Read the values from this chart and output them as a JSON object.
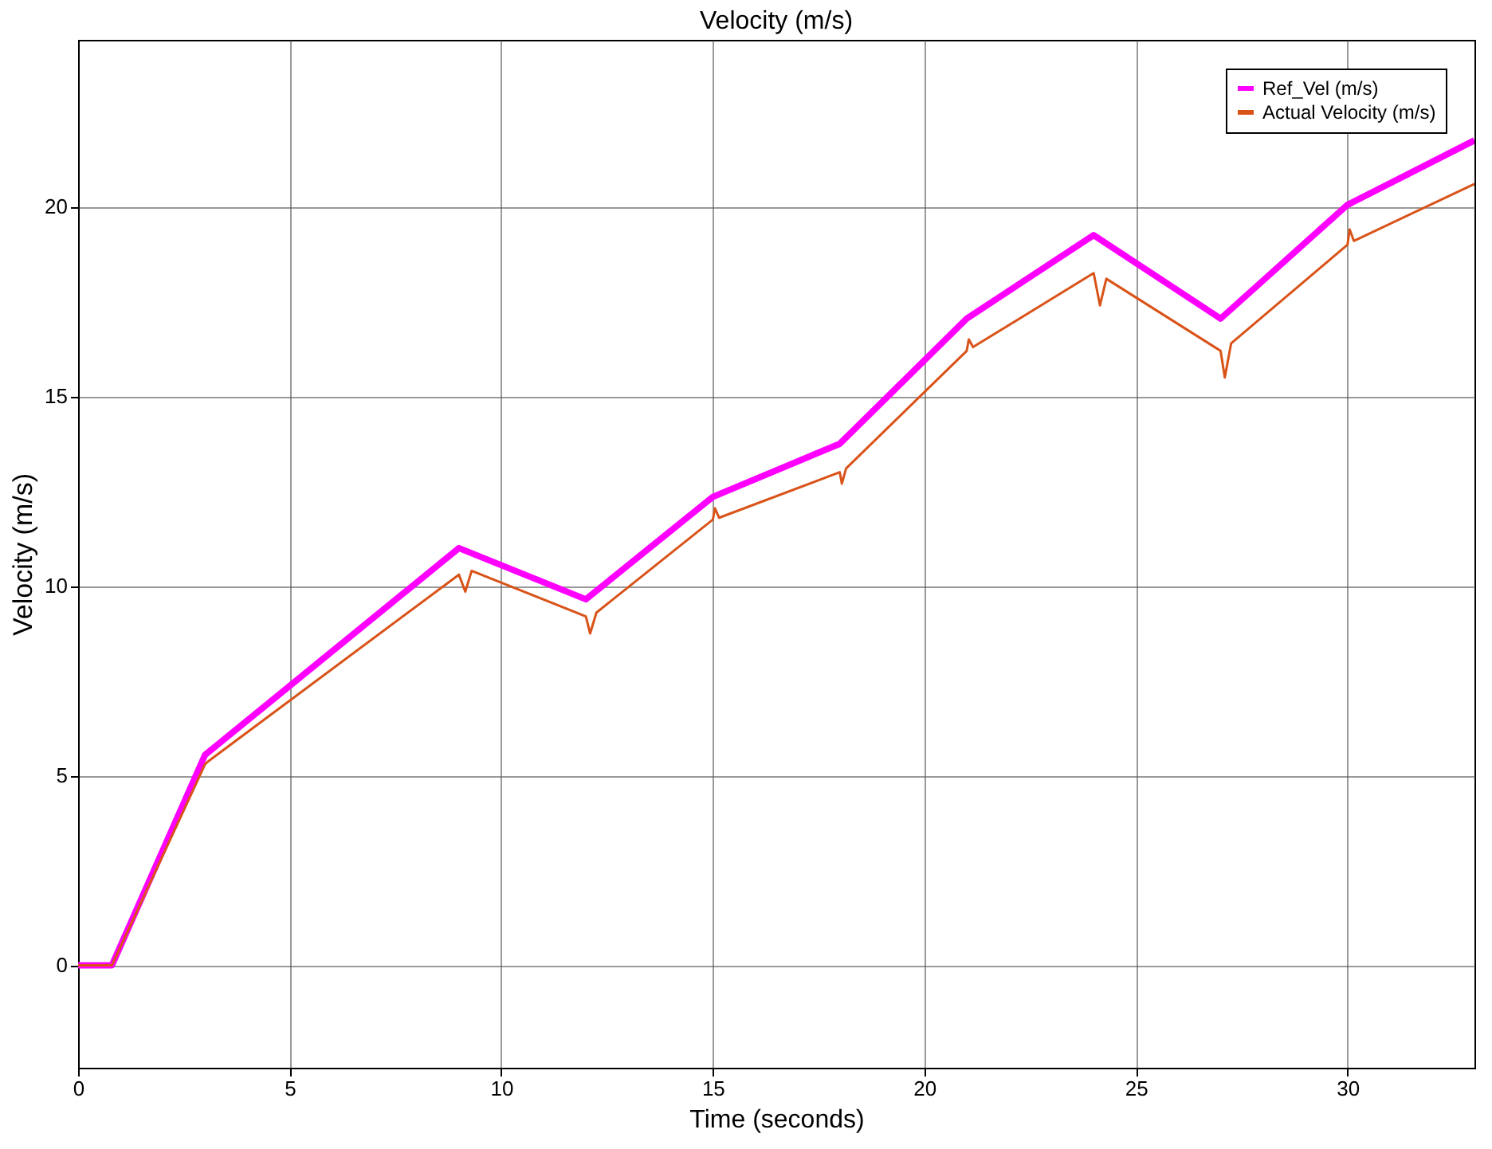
{
  "chart_data": {
    "type": "line",
    "title": "Velocity (m/s)",
    "xlabel": "Time (seconds)",
    "ylabel": "Velocity (m/s)",
    "xlim": [
      0,
      33
    ],
    "xticks": [
      0,
      5,
      10,
      15,
      20,
      25,
      30
    ],
    "ylim": [
      -2.7,
      24.4
    ],
    "yticks": [
      0,
      5,
      10,
      15,
      20
    ],
    "grid": true,
    "legend": "top right",
    "line_style": "solid",
    "marker": "none",
    "series": [
      {
        "name": "Ref_Vel (m/s)",
        "color": "#ff00ff",
        "x": [
          0,
          0.8,
          3,
          9,
          12,
          15,
          18,
          21,
          24,
          27,
          30,
          33
        ],
        "values": [
          0,
          0,
          5.55,
          11,
          9.65,
          12.35,
          13.75,
          17.05,
          19.25,
          17.05,
          20.05,
          21.75
        ]
      },
      {
        "name": "Actual Velocity (m/s)",
        "color": "#d95319",
        "x": [
          0,
          0.8,
          3,
          3.1,
          9,
          9.15,
          9.3,
          12,
          12.1,
          12.25,
          15,
          15.05,
          15.15,
          18,
          18.05,
          18.15,
          21,
          21.05,
          21.15,
          24,
          24.15,
          24.3,
          27,
          27.1,
          27.25,
          30,
          30.05,
          30.15,
          33
        ],
        "values": [
          0,
          0,
          5.3,
          5.4,
          10.3,
          9.85,
          10.4,
          9.2,
          8.75,
          9.3,
          11.75,
          12.05,
          11.8,
          13.0,
          12.7,
          13.1,
          16.2,
          16.5,
          16.3,
          18.25,
          17.4,
          18.1,
          16.2,
          15.5,
          16.4,
          19.0,
          19.4,
          19.1,
          20.6
        ]
      }
    ]
  }
}
